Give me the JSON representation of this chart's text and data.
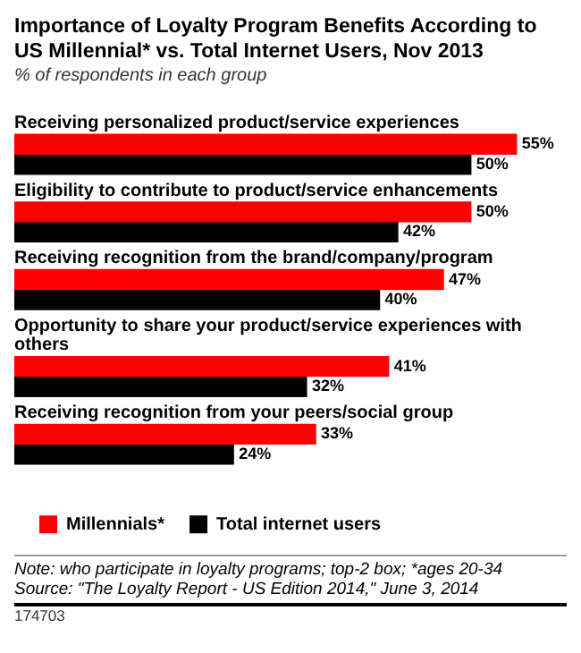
{
  "chart_data": {
    "type": "bar",
    "orientation": "horizontal",
    "title": "Importance of Loyalty Program Benefits According to US Millennial* vs. Total Internet Users, Nov 2013",
    "subtitle": "% of respondents in each group",
    "categories": [
      "Receiving personalized product/service experiences",
      "Eligibility to contribute to product/service enhancements",
      "Receiving recognition from the brand/company/program",
      "Opportunity to share your product/service experiences with others",
      "Receiving recognition from your peers/social group"
    ],
    "series": [
      {
        "name": "Millennials*",
        "color": "#ff0000",
        "values": [
          55,
          50,
          47,
          41,
          33
        ],
        "value_labels": [
          "55%",
          "50%",
          "47%",
          "41%",
          "33%"
        ]
      },
      {
        "name": "Total internet users",
        "color": "#000000",
        "values": [
          50,
          42,
          40,
          32,
          24
        ],
        "value_labels": [
          "50%",
          "42%",
          "40%",
          "32%",
          "24%"
        ]
      }
    ],
    "legend": "bottom",
    "annotations": [
      "Note: who participate in loyalty programs; top-2 box; *ages 20-34",
      "Source: \"The Loyalty Report - US Edition 2014,\" June 3, 2014",
      "174703"
    ]
  }
}
